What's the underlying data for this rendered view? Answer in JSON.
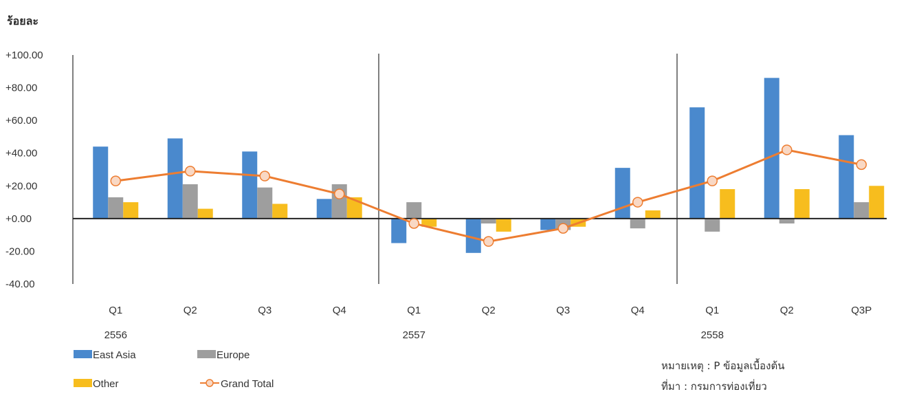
{
  "chart_data": {
    "type": "bar",
    "ylabel": "ร้อยละ",
    "ylim": [
      -40,
      100
    ],
    "yticks": [
      {
        "value": 100,
        "label": "+100.00"
      },
      {
        "value": 80,
        "label": "+80.00"
      },
      {
        "value": 60,
        "label": "+60.00"
      },
      {
        "value": 40,
        "label": "+40.00"
      },
      {
        "value": 20,
        "label": "+20.00"
      },
      {
        "value": 0,
        "label": "+0.00"
      },
      {
        "value": -20,
        "label": "-20.00"
      },
      {
        "value": -40,
        "label": "-40.00"
      }
    ],
    "categories": [
      "Q1",
      "Q2",
      "Q3",
      "Q4",
      "Q1",
      "Q2",
      "Q3",
      "Q4",
      "Q1",
      "Q2",
      "Q3P"
    ],
    "groups": [
      {
        "label": "2556",
        "categories": 4
      },
      {
        "label": "2557",
        "categories": 4
      },
      {
        "label": "2558",
        "categories": 3
      }
    ],
    "series": [
      {
        "name": "East Asia",
        "kind": "bar",
        "color": "#4a89cd",
        "values": [
          44,
          49,
          41,
          12,
          -15,
          -21,
          -7,
          31,
          68,
          86,
          51
        ]
      },
      {
        "name": "Europe",
        "kind": "bar",
        "color": "#9e9e9e",
        "values": [
          13,
          21,
          19,
          21,
          10,
          -3,
          -7,
          -6,
          -8,
          -3,
          10
        ]
      },
      {
        "name": "Other",
        "kind": "bar",
        "color": "#f7bd1e",
        "values": [
          10,
          6,
          9,
          13,
          -5,
          -8,
          -5,
          5,
          18,
          18,
          20
        ]
      },
      {
        "name": "Grand Total",
        "kind": "line",
        "color": "#ed7d31",
        "marker_fill": "#f9d8c4",
        "values": [
          23,
          29,
          26,
          15,
          -3,
          -14,
          -6,
          10,
          23,
          42,
          33
        ]
      }
    ],
    "legend_position": "bottom-left",
    "grid": false
  },
  "notes": {
    "remark": "หมายเหตุ : P ข้อมูลเบื้องต้น",
    "source": "ที่มา : กรมการท่องเที่ยว"
  }
}
